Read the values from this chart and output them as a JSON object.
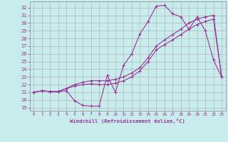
{
  "xlabel": "Windchill (Refroidissement éolien,°C)",
  "xlim": [
    -0.5,
    23.5
  ],
  "ylim": [
    18.6,
    32.8
  ],
  "yticks": [
    19,
    20,
    21,
    22,
    23,
    24,
    25,
    26,
    27,
    28,
    29,
    30,
    31,
    32
  ],
  "xticks": [
    0,
    1,
    2,
    3,
    4,
    5,
    6,
    7,
    8,
    9,
    10,
    11,
    12,
    13,
    14,
    15,
    16,
    17,
    18,
    19,
    20,
    21,
    22,
    23
  ],
  "bg_color": "#c8ecec",
  "line_color": "#993399",
  "grid_color": "#aaaaaa",
  "line1_x": [
    0,
    1,
    2,
    3,
    4,
    5,
    6,
    7,
    8,
    9,
    10,
    11,
    12,
    13,
    14,
    15,
    16,
    17,
    18,
    19,
    20,
    21,
    22,
    23
  ],
  "line1_y": [
    21.0,
    21.2,
    21.1,
    21.1,
    21.2,
    19.9,
    19.3,
    19.2,
    19.2,
    23.2,
    21.0,
    24.5,
    26.0,
    28.6,
    30.2,
    32.2,
    32.3,
    31.2,
    30.8,
    29.2,
    30.8,
    29.0,
    25.2,
    23.0
  ],
  "line2_x": [
    0,
    1,
    2,
    3,
    4,
    5,
    6,
    7,
    8,
    9,
    10,
    11,
    12,
    13,
    14,
    15,
    16,
    17,
    18,
    19,
    20,
    21,
    22,
    23
  ],
  "line2_y": [
    21.0,
    21.2,
    21.1,
    21.1,
    21.5,
    21.8,
    22.0,
    22.1,
    22.0,
    22.0,
    22.2,
    22.5,
    23.0,
    23.8,
    25.0,
    26.5,
    27.2,
    27.8,
    28.5,
    29.2,
    29.8,
    30.2,
    30.5,
    23.0
  ],
  "line3_x": [
    0,
    1,
    2,
    3,
    4,
    5,
    6,
    7,
    8,
    9,
    10,
    11,
    12,
    13,
    14,
    15,
    16,
    17,
    18,
    19,
    20,
    21,
    22,
    23
  ],
  "line3_y": [
    21.0,
    21.2,
    21.1,
    21.1,
    21.5,
    22.0,
    22.3,
    22.5,
    22.5,
    22.5,
    22.7,
    23.0,
    23.5,
    24.2,
    25.5,
    27.0,
    27.8,
    28.5,
    29.2,
    30.0,
    30.5,
    30.8,
    31.0,
    23.0
  ],
  "lw": 0.8,
  "ms": 3.0
}
